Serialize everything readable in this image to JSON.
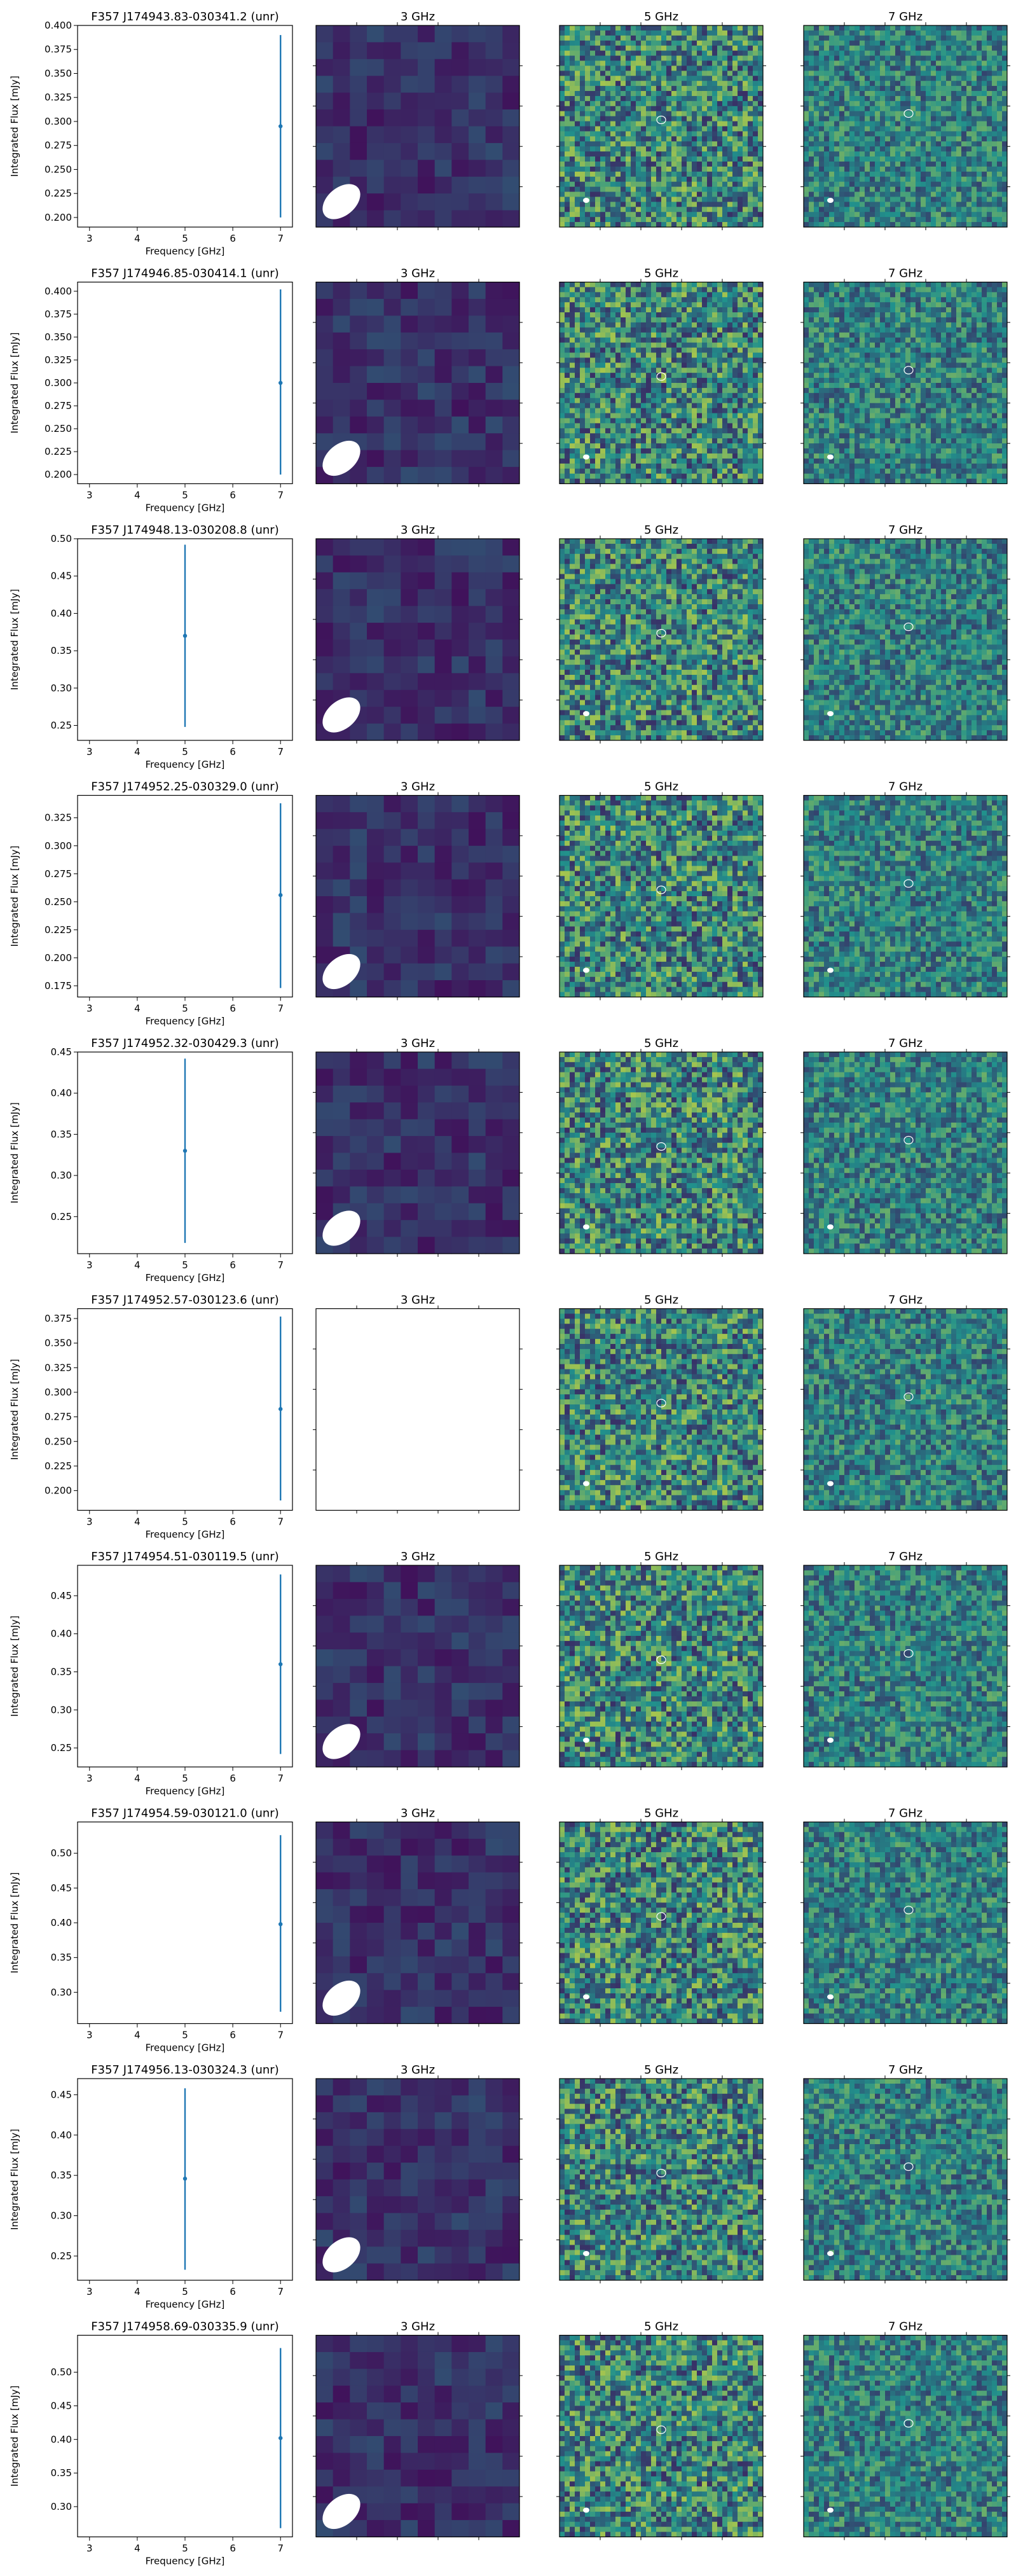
{
  "panel_titles": [
    "3 GHz",
    "5 GHz",
    "7 GHz"
  ],
  "image_colors": {
    "low": "#440154",
    "mid": "#21918c",
    "high": "#fde725",
    "beam": "#ffffff",
    "errorbar": "#1f77b4",
    "contour": "#ffffff"
  },
  "chart_data": [
    {
      "type": "scatter",
      "title": "F357 J174943.83-030341.2 (unr)",
      "xlabel": "Frequency [GHz]",
      "ylabel": "Integrated Flux [mJy]",
      "xlim": [
        2.75,
        7.25
      ],
      "ylim": [
        0.19,
        0.4
      ],
      "xticks": [
        3,
        4,
        5,
        6,
        7
      ],
      "yticks": [
        0.2,
        0.225,
        0.25,
        0.275,
        0.3,
        0.325,
        0.35,
        0.375,
        0.4
      ],
      "ytick_labels": [
        "0.200",
        "0.225",
        "0.250",
        "0.275",
        "0.300",
        "0.325",
        "0.350",
        "0.375",
        "0.400"
      ],
      "points": [
        {
          "x": 7,
          "y": 0.295,
          "yerr_low": 0.2,
          "yerr_high": 0.39
        }
      ],
      "images": {
        "3 GHz": "map",
        "5 GHz": "map",
        "7 GHz": "map"
      }
    },
    {
      "type": "scatter",
      "title": "F357 J174946.85-030414.1 (unr)",
      "xlabel": "Frequency [GHz]",
      "ylabel": "Integrated Flux [mJy]",
      "xlim": [
        2.75,
        7.25
      ],
      "ylim": [
        0.19,
        0.41
      ],
      "xticks": [
        3,
        4,
        5,
        6,
        7
      ],
      "yticks": [
        0.2,
        0.225,
        0.25,
        0.275,
        0.3,
        0.325,
        0.35,
        0.375,
        0.4
      ],
      "ytick_labels": [
        "0.200",
        "0.225",
        "0.250",
        "0.275",
        "0.300",
        "0.325",
        "0.350",
        "0.375",
        "0.400"
      ],
      "points": [
        {
          "x": 7,
          "y": 0.3,
          "yerr_low": 0.2,
          "yerr_high": 0.402
        }
      ],
      "images": {
        "3 GHz": "map",
        "5 GHz": "map",
        "7 GHz": "map"
      }
    },
    {
      "type": "scatter",
      "title": "F357 J174948.13-030208.8 (unr)",
      "xlabel": "Frequency [GHz]",
      "ylabel": "Integrated Flux [mJy]",
      "xlim": [
        2.75,
        7.25
      ],
      "ylim": [
        0.23,
        0.5
      ],
      "xticks": [
        3,
        4,
        5,
        6,
        7
      ],
      "yticks": [
        0.25,
        0.3,
        0.35,
        0.4,
        0.45,
        0.5
      ],
      "ytick_labels": [
        "0.25",
        "0.30",
        "0.35",
        "0.40",
        "0.45",
        "0.50"
      ],
      "points": [
        {
          "x": 5,
          "y": 0.37,
          "yerr_low": 0.248,
          "yerr_high": 0.492
        }
      ],
      "images": {
        "3 GHz": "map",
        "5 GHz": "map",
        "7 GHz": "map"
      }
    },
    {
      "type": "scatter",
      "title": "F357 J174952.25-030329.0 (unr)",
      "xlabel": "Frequency [GHz]",
      "ylabel": "Integrated Flux [mJy]",
      "xlim": [
        2.75,
        7.25
      ],
      "ylim": [
        0.165,
        0.345
      ],
      "xticks": [
        3,
        4,
        5,
        6,
        7
      ],
      "yticks": [
        0.175,
        0.2,
        0.225,
        0.25,
        0.275,
        0.3,
        0.325
      ],
      "ytick_labels": [
        "0.175",
        "0.200",
        "0.225",
        "0.250",
        "0.275",
        "0.300",
        "0.325"
      ],
      "points": [
        {
          "x": 7,
          "y": 0.256,
          "yerr_low": 0.173,
          "yerr_high": 0.338
        }
      ],
      "images": {
        "3 GHz": "map",
        "5 GHz": "map",
        "7 GHz": "map"
      }
    },
    {
      "type": "scatter",
      "title": "F357 J174952.32-030429.3 (unr)",
      "xlabel": "Frequency [GHz]",
      "ylabel": "Integrated Flux [mJy]",
      "xlim": [
        2.75,
        7.25
      ],
      "ylim": [
        0.205,
        0.45
      ],
      "xticks": [
        3,
        4,
        5,
        6,
        7
      ],
      "yticks": [
        0.25,
        0.3,
        0.35,
        0.4,
        0.45
      ],
      "ytick_labels": [
        "0.25",
        "0.30",
        "0.35",
        "0.40",
        "0.45"
      ],
      "points": [
        {
          "x": 5,
          "y": 0.33,
          "yerr_low": 0.218,
          "yerr_high": 0.442
        }
      ],
      "images": {
        "3 GHz": "map",
        "5 GHz": "map",
        "7 GHz": "map"
      }
    },
    {
      "type": "scatter",
      "title": "F357 J174952.57-030123.6 (unr)",
      "xlabel": "Frequency [GHz]",
      "ylabel": "Integrated Flux [mJy]",
      "xlim": [
        2.75,
        7.25
      ],
      "ylim": [
        0.18,
        0.385
      ],
      "xticks": [
        3,
        4,
        5,
        6,
        7
      ],
      "yticks": [
        0.2,
        0.225,
        0.25,
        0.275,
        0.3,
        0.325,
        0.35,
        0.375
      ],
      "ytick_labels": [
        "0.200",
        "0.225",
        "0.250",
        "0.275",
        "0.300",
        "0.325",
        "0.350",
        "0.375"
      ],
      "points": [
        {
          "x": 7,
          "y": 0.283,
          "yerr_low": 0.19,
          "yerr_high": 0.377
        }
      ],
      "images": {
        "3 GHz": "blank",
        "5 GHz": "map",
        "7 GHz": "map"
      }
    },
    {
      "type": "scatter",
      "title": "F357 J174954.51-030119.5 (unr)",
      "xlabel": "Frequency [GHz]",
      "ylabel": "Integrated Flux [mJy]",
      "xlim": [
        2.75,
        7.25
      ],
      "ylim": [
        0.225,
        0.49
      ],
      "xticks": [
        3,
        4,
        5,
        6,
        7
      ],
      "yticks": [
        0.25,
        0.3,
        0.35,
        0.4,
        0.45
      ],
      "ytick_labels": [
        "0.25",
        "0.30",
        "0.35",
        "0.40",
        "0.45"
      ],
      "points": [
        {
          "x": 7,
          "y": 0.36,
          "yerr_low": 0.242,
          "yerr_high": 0.478
        }
      ],
      "images": {
        "3 GHz": "map",
        "5 GHz": "map",
        "7 GHz": "map"
      }
    },
    {
      "type": "scatter",
      "title": "F357 J174954.59-030121.0 (unr)",
      "xlabel": "Frequency [GHz]",
      "ylabel": "Integrated Flux [mJy]",
      "xlim": [
        2.75,
        7.25
      ],
      "ylim": [
        0.255,
        0.545
      ],
      "xticks": [
        3,
        4,
        5,
        6,
        7
      ],
      "yticks": [
        0.3,
        0.35,
        0.4,
        0.45,
        0.5
      ],
      "ytick_labels": [
        "0.30",
        "0.35",
        "0.40",
        "0.45",
        "0.50"
      ],
      "points": [
        {
          "x": 7,
          "y": 0.398,
          "yerr_low": 0.272,
          "yerr_high": 0.526
        }
      ],
      "images": {
        "3 GHz": "map",
        "5 GHz": "map",
        "7 GHz": "map"
      }
    },
    {
      "type": "scatter",
      "title": "F357 J174956.13-030324.3 (unr)",
      "xlabel": "Frequency [GHz]",
      "ylabel": "Integrated Flux [mJy]",
      "xlim": [
        2.75,
        7.25
      ],
      "ylim": [
        0.22,
        0.47
      ],
      "xticks": [
        3,
        4,
        5,
        6,
        7
      ],
      "yticks": [
        0.25,
        0.3,
        0.35,
        0.4,
        0.45
      ],
      "ytick_labels": [
        "0.25",
        "0.30",
        "0.35",
        "0.40",
        "0.45"
      ],
      "points": [
        {
          "x": 5,
          "y": 0.346,
          "yerr_low": 0.233,
          "yerr_high": 0.458
        }
      ],
      "images": {
        "3 GHz": "map",
        "5 GHz": "map",
        "7 GHz": "map"
      }
    },
    {
      "type": "scatter",
      "title": "F357 J174958.69-030335.9 (unr)",
      "xlabel": "Frequency [GHz]",
      "ylabel": "Integrated Flux [mJy]",
      "xlim": [
        2.75,
        7.25
      ],
      "ylim": [
        0.255,
        0.555
      ],
      "xticks": [
        3,
        4,
        5,
        6,
        7
      ],
      "yticks": [
        0.3,
        0.35,
        0.4,
        0.45,
        0.5
      ],
      "ytick_labels": [
        "0.30",
        "0.35",
        "0.40",
        "0.45",
        "0.50"
      ],
      "points": [
        {
          "x": 7,
          "y": 0.402,
          "yerr_low": 0.268,
          "yerr_high": 0.536
        }
      ],
      "images": {
        "3 GHz": "map",
        "5 GHz": "map",
        "7 GHz": "map"
      }
    }
  ]
}
